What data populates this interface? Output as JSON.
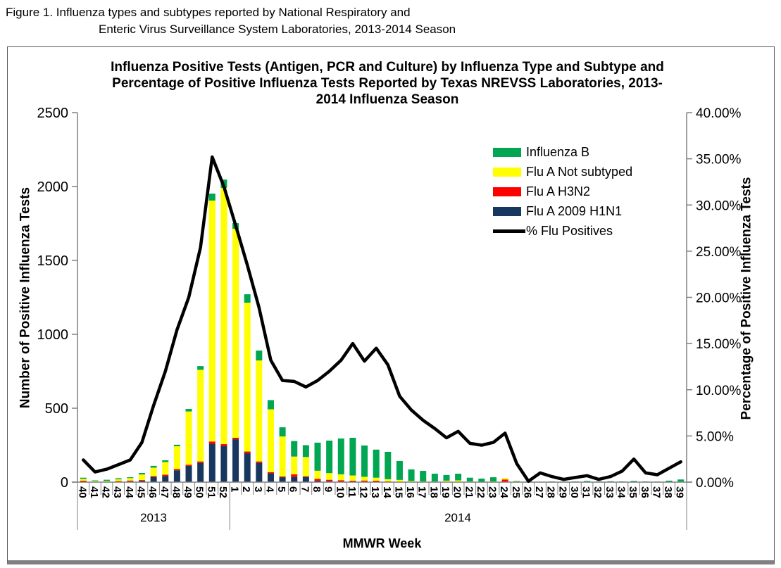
{
  "figure_caption": {
    "line1": "Figure 1. Influenza types and subtypes reported by National Respiratory and",
    "line2": "Enteric Virus Surveillance System Laboratories, 2013-2014 Season"
  },
  "chart_data": {
    "type": "combo: stacked-bar + line",
    "title": "Influenza Positive Tests (Antigen, PCR and Culture) by Influenza Type and Subtype and Percentage of Positive Influenza Tests Reported by Texas NREVSS Laboratories, 2013-2014 Influenza Season",
    "xlabel": "MMWR Week",
    "ylabel_left": "Number of Positive Influenza Tests",
    "ylabel_right": "Percentage of Positive Influenza Tests",
    "ylim_left": [
      0,
      2500
    ],
    "yticks_left": [
      "0",
      "500",
      "1000",
      "1500",
      "2000",
      "2500"
    ],
    "ylim_right": [
      0,
      40
    ],
    "yticks_right": [
      "0.00%",
      "5.00%",
      "10.00%",
      "15.00%",
      "20.00%",
      "25.00%",
      "30.00%",
      "35.00%",
      "40.00%"
    ],
    "grid": false,
    "legend_position": "upper-right inside plot",
    "categories": [
      "40",
      "41",
      "42",
      "43",
      "44",
      "45",
      "46",
      "47",
      "48",
      "49",
      "50",
      "51",
      "52",
      "1",
      "2",
      "3",
      "4",
      "5",
      "6",
      "7",
      "8",
      "9",
      "10",
      "11",
      "12",
      "13",
      "14",
      "15",
      "16",
      "17",
      "18",
      "19",
      "20",
      "21",
      "22",
      "23",
      "24",
      "25",
      "26",
      "27",
      "28",
      "29",
      "30",
      "31",
      "32",
      "33",
      "34",
      "35",
      "36",
      "37",
      "38",
      "39"
    ],
    "year_groups": [
      {
        "label": "2013",
        "span": 13
      },
      {
        "label": "2014",
        "span": 39
      }
    ],
    "axis_color": "#808080",
    "legend": [
      {
        "label": "Influenza B",
        "color": "#00A651",
        "type": "bar"
      },
      {
        "label": "Flu A Not subtyped",
        "color": "#FFFF00",
        "type": "bar"
      },
      {
        "label": "Flu A H3N2",
        "color": "#FF0000",
        "type": "bar"
      },
      {
        "label": "Flu A 2009 H1N1",
        "color": "#17375E",
        "type": "bar"
      },
      {
        "label": "% Flu Positives",
        "color": "#000000",
        "type": "line"
      }
    ],
    "series": [
      {
        "name": "Flu A 2009 H1N1",
        "type": "bar",
        "color": "#17375E",
        "values": [
          2,
          0,
          0,
          2,
          6,
          10,
          35,
          42,
          80,
          110,
          130,
          260,
          245,
          290,
          195,
          130,
          60,
          33,
          35,
          35,
          10,
          8,
          5,
          5,
          3,
          2,
          0,
          0,
          0,
          0,
          0,
          0,
          0,
          0,
          0,
          0,
          0,
          0,
          0,
          0,
          0,
          0,
          0,
          0,
          0,
          0,
          0,
          0,
          0,
          0,
          0,
          0
        ]
      },
      {
        "name": "Flu A H3N2",
        "type": "bar",
        "color": "#FF0000",
        "values": [
          8,
          2,
          2,
          5,
          5,
          4,
          6,
          8,
          8,
          8,
          10,
          15,
          12,
          10,
          12,
          10,
          8,
          5,
          18,
          5,
          12,
          8,
          8,
          5,
          8,
          8,
          5,
          3,
          0,
          0,
          0,
          0,
          0,
          0,
          0,
          0,
          18,
          0,
          0,
          0,
          0,
          0,
          0,
          0,
          0,
          0,
          0,
          0,
          0,
          0,
          0,
          0
        ]
      },
      {
        "name": "Flu A Not subtyped",
        "type": "bar",
        "color": "#FFFF00",
        "values": [
          12,
          6,
          6,
          12,
          16,
          38,
          57,
          86,
          155,
          360,
          620,
          1630,
          1734,
          1414,
          1007,
          683,
          425,
          271,
          120,
          130,
          55,
          45,
          40,
          35,
          25,
          20,
          15,
          12,
          8,
          5,
          4,
          10,
          12,
          5,
          2,
          5,
          10,
          5,
          0,
          0,
          0,
          0,
          0,
          0,
          0,
          0,
          0,
          0,
          0,
          0,
          2,
          3
        ]
      },
      {
        "name": "Influenza B",
        "type": "bar",
        "color": "#00A651",
        "values": [
          8,
          4,
          8,
          7,
          6,
          10,
          12,
          12,
          10,
          17,
          25,
          47,
          56,
          38,
          57,
          67,
          62,
          62,
          105,
          80,
          190,
          220,
          242,
          255,
          212,
          190,
          185,
          128,
          78,
          71,
          53,
          38,
          45,
          25,
          22,
          28,
          0,
          3,
          5,
          3,
          5,
          4,
          5,
          8,
          5,
          6,
          5,
          8,
          5,
          4,
          8,
          15
        ]
      },
      {
        "name": "% Flu Positives",
        "type": "line",
        "axis": "right",
        "color": "#000000",
        "values": [
          2.4,
          1.1,
          1.4,
          1.9,
          2.4,
          4.3,
          8.3,
          12.0,
          16.5,
          20.0,
          25.4,
          35.2,
          32.0,
          27.8,
          23.5,
          18.9,
          13.2,
          11.0,
          10.9,
          10.3,
          11.0,
          12.0,
          13.2,
          15.0,
          13.1,
          14.5,
          12.7,
          9.3,
          7.8,
          6.7,
          5.8,
          4.8,
          5.5,
          4.2,
          4.0,
          4.3,
          5.3,
          2.0,
          0.1,
          1.0,
          0.6,
          0.3,
          0.5,
          0.7,
          0.3,
          0.6,
          1.2,
          2.5,
          1.0,
          0.8,
          1.5,
          2.2
        ]
      }
    ]
  }
}
